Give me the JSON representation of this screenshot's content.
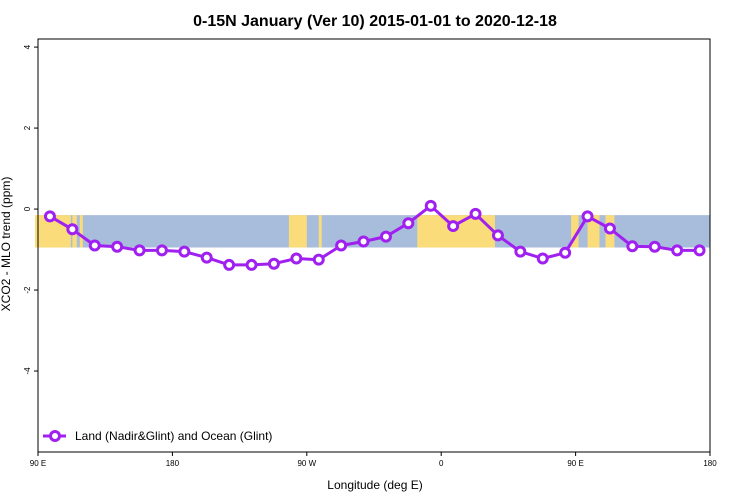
{
  "chart_data": {
    "type": "line",
    "title": "0-15N January (Ver 10)   2015-01-01 to 2020-12-18",
    "xlabel": "Longitude (deg E)",
    "ylabel": "XCO2 - MLO trend (ppm)",
    "x_axis": {
      "ticks": [
        {
          "value": 90,
          "label": "90 E"
        },
        {
          "value": 180,
          "label": "180"
        },
        {
          "value": 270,
          "label": "90 W"
        },
        {
          "value": 360,
          "label": "0"
        },
        {
          "value": 450,
          "label": "90 E"
        },
        {
          "value": 540,
          "label": "180"
        }
      ],
      "range": [
        90,
        540
      ]
    },
    "y_axis": {
      "ticks": [
        {
          "value": 4,
          "label": "4"
        },
        {
          "value": 2,
          "label": "2"
        },
        {
          "value": 0,
          "label": "0"
        },
        {
          "value": -2,
          "label": "-2"
        },
        {
          "value": -4,
          "label": "-4"
        }
      ],
      "range": [
        -6,
        4.2
      ]
    },
    "background_band": {
      "y_top": -0.15,
      "y_bottom": -0.95,
      "ocean_color": "#a8bcdc",
      "land_color": "#fadc7a"
    },
    "series": [
      {
        "name": "Land (Nadir&Glint) and Ocean (Glint)",
        "color": "#a020f0",
        "x": [
          98,
          113,
          128,
          143,
          158,
          173,
          188,
          203,
          218,
          233,
          248,
          263,
          278,
          293,
          308,
          323,
          338,
          353,
          368,
          383,
          398,
          413,
          428,
          443,
          458,
          473,
          488,
          503,
          518,
          533
        ],
        "y": [
          -0.18,
          -0.5,
          -0.9,
          -0.93,
          -1.02,
          -1.02,
          -1.05,
          -1.2,
          -1.38,
          -1.38,
          -1.35,
          -1.22,
          -1.25,
          -0.9,
          -0.8,
          -0.68,
          -0.35,
          0.08,
          -0.42,
          -0.12,
          -0.65,
          -1.05,
          -1.22,
          -1.08,
          -0.18,
          -0.48,
          -0.92,
          -0.93,
          -1.02,
          -1.02
        ]
      }
    ],
    "legend": {
      "placement": "bottom-left"
    }
  }
}
